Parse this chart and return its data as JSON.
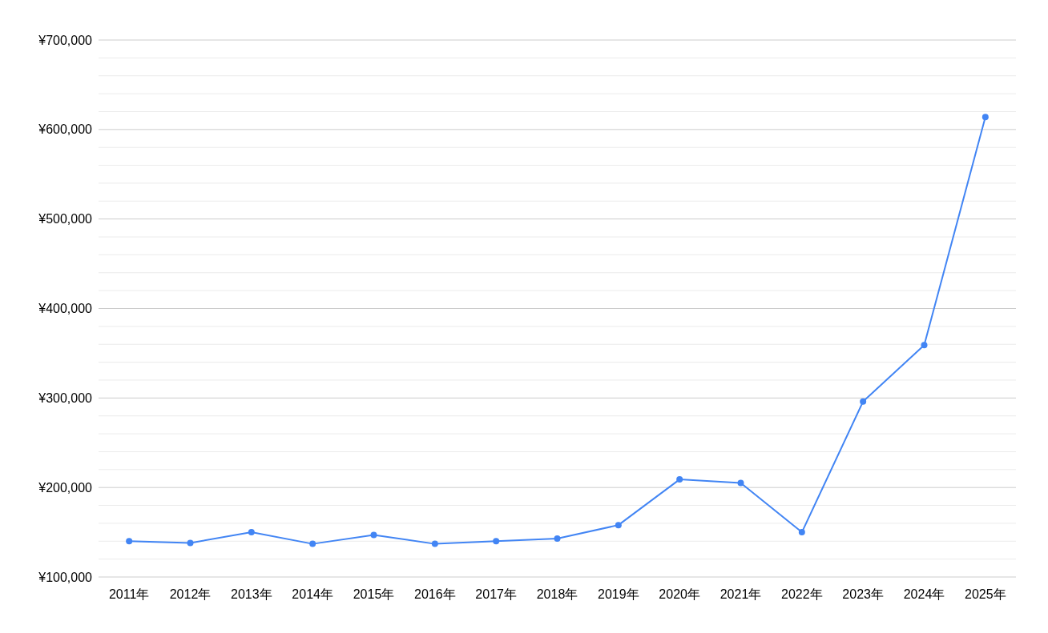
{
  "chart_data": {
    "type": "line",
    "categories": [
      "2011年",
      "2012年",
      "2013年",
      "2014年",
      "2015年",
      "2016年",
      "2017年",
      "2018年",
      "2019年",
      "2020年",
      "2021年",
      "2022年",
      "2023年",
      "2024年",
      "2025年"
    ],
    "series": [
      {
        "color": "#4285f4",
        "values": [
          140000,
          138000,
          150000,
          137000,
          147000,
          137000,
          140000,
          143000,
          158000,
          209000,
          205000,
          150000,
          296000,
          359000,
          614000
        ]
      }
    ],
    "ylim": [
      100000,
      700000
    ],
    "yticks": [
      {
        "value": 100000,
        "label": "¥100,000"
      },
      {
        "value": 120000,
        "label": null
      },
      {
        "value": 140000,
        "label": null
      },
      {
        "value": 160000,
        "label": null
      },
      {
        "value": 180000,
        "label": null
      },
      {
        "value": 200000,
        "label": "¥200,000"
      },
      {
        "value": 220000,
        "label": null
      },
      {
        "value": 240000,
        "label": null
      },
      {
        "value": 260000,
        "label": null
      },
      {
        "value": 280000,
        "label": null
      },
      {
        "value": 300000,
        "label": "¥300,000"
      },
      {
        "value": 320000,
        "label": null
      },
      {
        "value": 340000,
        "label": null
      },
      {
        "value": 360000,
        "label": null
      },
      {
        "value": 380000,
        "label": null
      },
      {
        "value": 400000,
        "label": "¥400,000"
      },
      {
        "value": 420000,
        "label": null
      },
      {
        "value": 440000,
        "label": null
      },
      {
        "value": 460000,
        "label": null
      },
      {
        "value": 480000,
        "label": null
      },
      {
        "value": 500000,
        "label": "¥500,000"
      },
      {
        "value": 520000,
        "label": null
      },
      {
        "value": 540000,
        "label": null
      },
      {
        "value": 560000,
        "label": null
      },
      {
        "value": 580000,
        "label": null
      },
      {
        "value": 600000,
        "label": "¥600,000"
      },
      {
        "value": 620000,
        "label": null
      },
      {
        "value": 640000,
        "label": null
      },
      {
        "value": 660000,
        "label": null
      },
      {
        "value": 680000,
        "label": null
      },
      {
        "value": 700000,
        "label": "¥700,000"
      }
    ],
    "grid": "y",
    "marker": "circle"
  }
}
